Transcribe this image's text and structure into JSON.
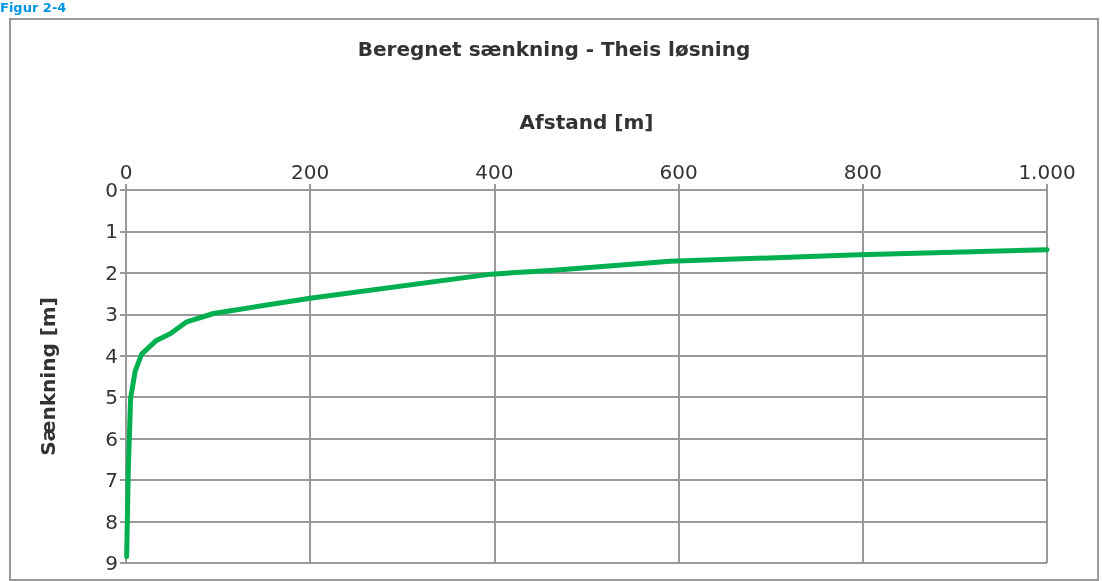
{
  "chart_data": {
    "type": "line",
    "title": "Beregnet sænkning - Theis løsning",
    "xlabel": "Afstand [m]",
    "ylabel": "Sænkning [m]",
    "annotations": [
      "Figur 2-4"
    ],
    "x": [
      0.7,
      2.5,
      5,
      10,
      17,
      33,
      48,
      66,
      95,
      200,
      396,
      461,
      591,
      787,
      1000
    ],
    "series": [
      {
        "color": "#00b050",
        "values": [
          8.85,
          6.74,
          5.02,
          4.37,
          3.96,
          3.63,
          3.47,
          3.18,
          2.98,
          2.61,
          2.03,
          1.94,
          1.72,
          1.57,
          1.44
        ]
      }
    ],
    "xlim": [
      0,
      1000
    ],
    "xticks": [
      0,
      200,
      400,
      600,
      800,
      {
        "value": 1000,
        "label": "1.000"
      }
    ],
    "ylim": [
      9,
      0
    ],
    "yticks": [
      0,
      1,
      2,
      3,
      4,
      5,
      6,
      7,
      8,
      9
    ],
    "grid": true,
    "marker": "none",
    "line_style": "solid"
  }
}
